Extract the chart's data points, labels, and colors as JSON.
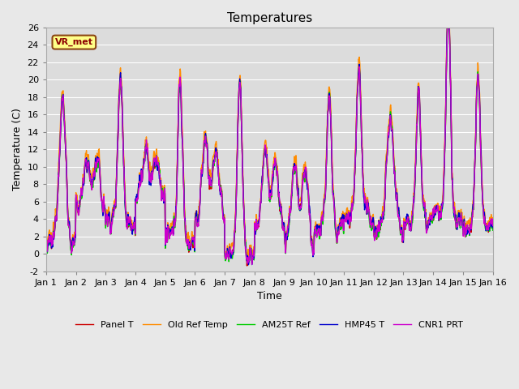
{
  "title": "Temperatures",
  "xlabel": "Time",
  "ylabel": "Temperature (C)",
  "ylim": [
    -2,
    26
  ],
  "xlim": [
    0,
    15
  ],
  "xtick_labels": [
    "Jan 1",
    "Jan 2",
    "Jan 3",
    "Jan 4",
    "Jan 5",
    "Jan 6",
    "Jan 7",
    "Jan 8",
    "Jan 9",
    "Jan 10",
    "Jan 11",
    "Jan 12",
    "Jan 13",
    "Jan 14",
    "Jan 15",
    "Jan 16"
  ],
  "ytick_values": [
    -2,
    0,
    2,
    4,
    6,
    8,
    10,
    12,
    14,
    16,
    18,
    20,
    22,
    24,
    26
  ],
  "ytick_labels": [
    "-2",
    "0",
    "2",
    "4",
    "6",
    "8",
    "10",
    "12",
    "14",
    "16",
    "18",
    "20",
    "22",
    "24",
    "26"
  ],
  "series_names": [
    "Panel T",
    "Old Ref Temp",
    "AM25T Ref",
    "HMP45 T",
    "CNR1 PRT"
  ],
  "series_colors": [
    "#cc0000",
    "#ff8c00",
    "#00cc00",
    "#0000cc",
    "#cc00cc"
  ],
  "series_lw": [
    1.0,
    1.0,
    1.0,
    1.0,
    1.0
  ],
  "vr_met_label": "VR_met",
  "background_color": "#dcdcdc",
  "fig_color": "#e8e8e8",
  "title_fontsize": 11,
  "axis_label_fontsize": 9,
  "tick_fontsize": 8,
  "legend_fontsize": 8,
  "grid_color": "#ffffff",
  "grid_lw": 0.8
}
